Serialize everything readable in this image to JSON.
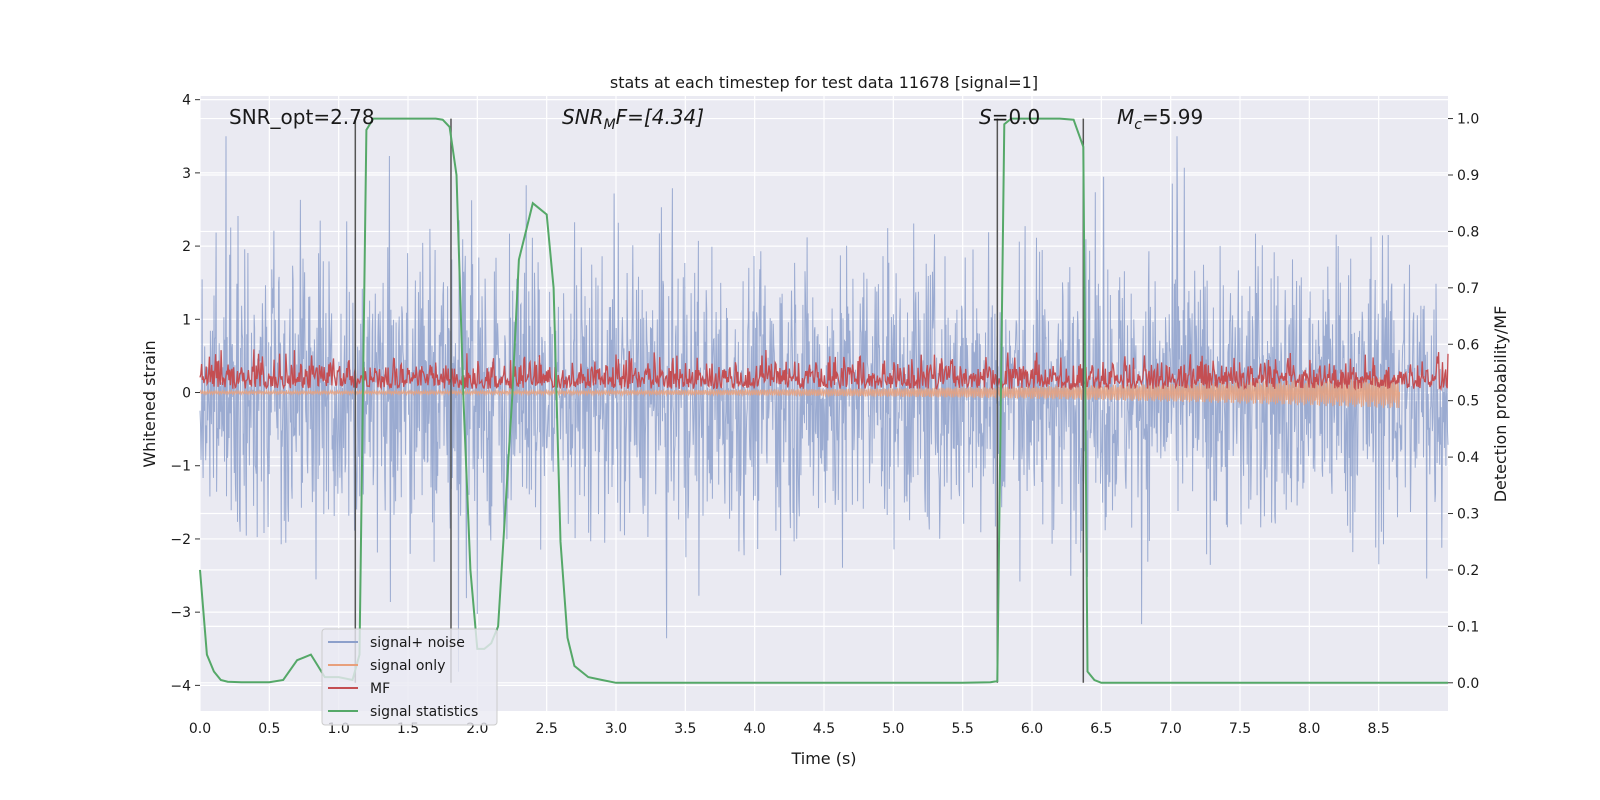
{
  "chart_data": {
    "type": "line",
    "title": "stats at each timestep for test data 11678 [signal=1]",
    "xlabel": "Time (s)",
    "ylabel_left": "Whitened strain",
    "ylabel_right": "Detection probability/MF",
    "xlim": [
      0,
      9
    ],
    "ylim_left": [
      -4.35,
      4.05
    ],
    "ylim_right": [
      -0.05,
      1.04
    ],
    "x_ticks": [
      "0.0",
      "0.5",
      "1.0",
      "1.5",
      "2.0",
      "2.5",
      "3.0",
      "3.5",
      "4.0",
      "4.5",
      "5.0",
      "5.5",
      "6.0",
      "6.5",
      "7.0",
      "7.5",
      "8.0",
      "8.5"
    ],
    "y_ticks_left": [
      "−4",
      "−3",
      "−2",
      "−1",
      "0",
      "1",
      "2",
      "3",
      "4"
    ],
    "y_ticks_right": [
      "0.0",
      "0.1",
      "0.2",
      "0.3",
      "0.4",
      "0.5",
      "0.6",
      "0.7",
      "0.8",
      "0.9",
      "1.0"
    ],
    "grid": true,
    "legend_position": "lower-left",
    "annotations": {
      "snr_opt": "SNR_opt=2.78",
      "snr_mf_sym": "SNR",
      "snr_mf_sub": "M",
      "snr_mf_rest": "F=[4.34]",
      "s_sym": "S",
      "s_rest": "=0.0",
      "mc_sym": "M",
      "mc_sub": "c",
      "mc_rest": "=5.99"
    },
    "vertical_lines_x": [
      1.12,
      1.81,
      5.75,
      6.37
    ],
    "series": [
      {
        "name": "signal+ noise",
        "color": "#8da0cb",
        "kind": "noise",
        "envelope_abs": [
          2.4,
          4.0
        ]
      },
      {
        "name": "signal only",
        "color": "#e8a07c",
        "kind": "chirp",
        "start_x": 0.0,
        "end_x": 8.65
      },
      {
        "name": "MF",
        "color": "#c44e52",
        "kind": "mf",
        "range": [
          0.0,
          0.95
        ]
      },
      {
        "name": "signal statistics",
        "color": "#55a868",
        "x": [
          0.0,
          0.05,
          0.1,
          0.15,
          0.2,
          0.3,
          0.5,
          0.6,
          0.7,
          0.75,
          0.8,
          0.85,
          0.9,
          1.0,
          1.1,
          1.15,
          1.2,
          1.25,
          1.3,
          1.5,
          1.7,
          1.75,
          1.8,
          1.85,
          1.9,
          1.95,
          2.0,
          2.05,
          2.1,
          2.15,
          2.2,
          2.25,
          2.3,
          2.35,
          2.4,
          2.45,
          2.5,
          2.55,
          2.6,
          2.65,
          2.7,
          2.8,
          2.9,
          3.0,
          3.5,
          4.0,
          4.5,
          5.0,
          5.5,
          5.7,
          5.75,
          5.8,
          5.85,
          5.9,
          6.0,
          6.1,
          6.2,
          6.3,
          6.37,
          6.4,
          6.45,
          6.5,
          6.6,
          7.0,
          7.5,
          8.0,
          8.5,
          9.0
        ],
        "y": [
          0.2,
          0.05,
          0.02,
          0.005,
          0.002,
          0.001,
          0.001,
          0.005,
          0.04,
          0.045,
          0.05,
          0.03,
          0.01,
          0.01,
          0.005,
          0.05,
          0.98,
          1.0,
          1.0,
          1.0,
          1.0,
          0.998,
          0.985,
          0.9,
          0.5,
          0.2,
          0.06,
          0.06,
          0.07,
          0.1,
          0.3,
          0.5,
          0.75,
          0.8,
          0.85,
          0.84,
          0.83,
          0.7,
          0.25,
          0.08,
          0.03,
          0.01,
          0.005,
          0.0,
          0.0,
          0.0,
          0.0,
          0.0,
          0.0,
          0.001,
          0.003,
          0.99,
          1.0,
          1.0,
          1.0,
          1.0,
          1.0,
          0.998,
          0.95,
          0.02,
          0.005,
          0.0,
          0.0,
          0.0,
          0.0,
          0.0,
          0.0,
          0.0
        ]
      }
    ]
  }
}
